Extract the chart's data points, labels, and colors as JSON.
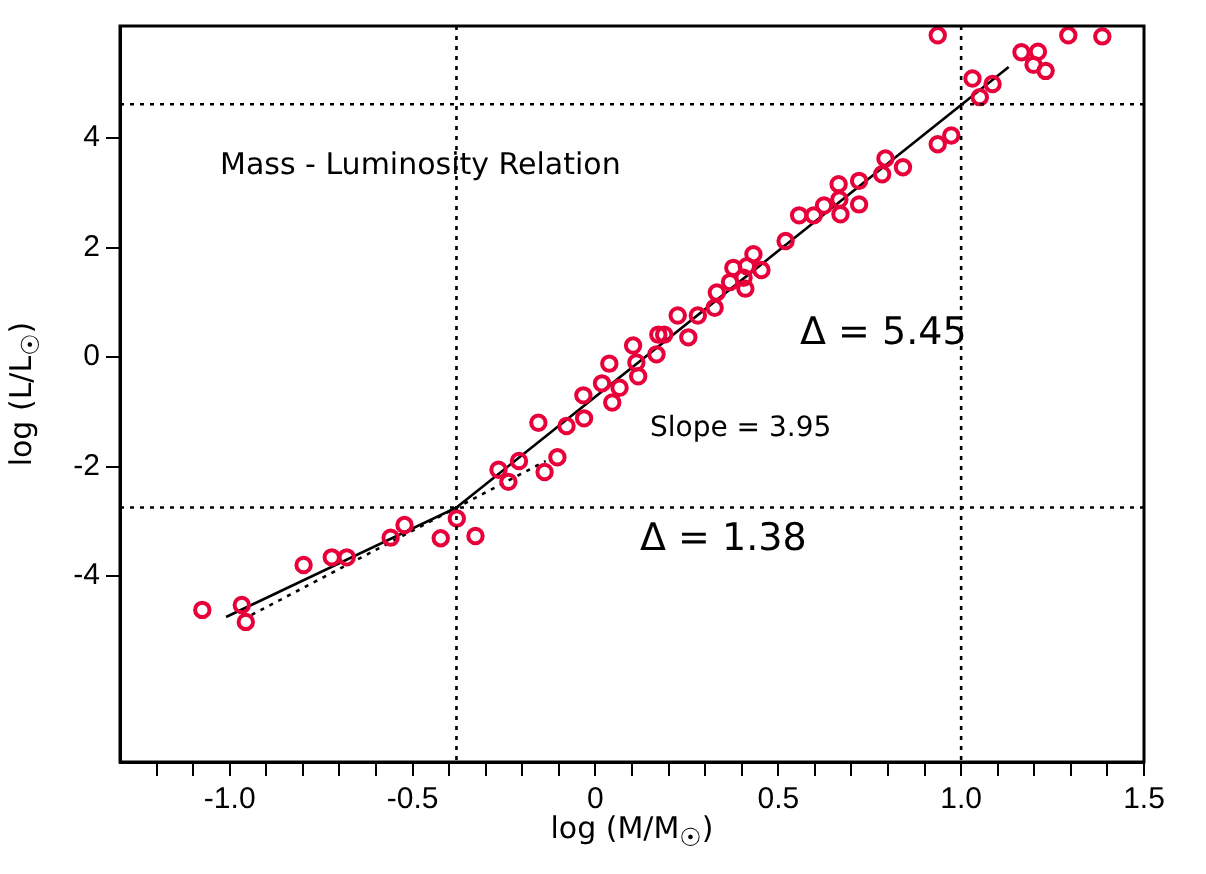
{
  "chart_data": {
    "type": "scatter",
    "xlabel": "log (M/M$_{☉}$)",
    "ylabel": "log (L/L$_{☉}$)",
    "xlim": [
      -1.3,
      1.5
    ],
    "ylim": [
      -7.4,
      6.05
    ],
    "xticks": [
      {
        "value": -1.2,
        "label": null
      },
      {
        "value": -1.1,
        "label": null
      },
      {
        "value": -1,
        "label": "-1.0"
      },
      {
        "value": -0.9,
        "label": null
      },
      {
        "value": -0.8,
        "label": null
      },
      {
        "value": -0.7,
        "label": null
      },
      {
        "value": -0.6,
        "label": null
      },
      {
        "value": -0.5,
        "label": "-0.5"
      },
      {
        "value": -0.4,
        "label": null
      },
      {
        "value": -0.3,
        "label": null
      },
      {
        "value": -0.2,
        "label": null
      },
      {
        "value": -0.1,
        "label": null
      },
      0,
      {
        "value": 0.1,
        "label": null
      },
      {
        "value": 0.2,
        "label": null
      },
      {
        "value": 0.3,
        "label": null
      },
      {
        "value": 0.4,
        "label": null
      },
      0.5,
      {
        "value": 0.6,
        "label": null
      },
      {
        "value": 0.7,
        "label": null
      },
      {
        "value": 0.8,
        "label": null
      },
      {
        "value": 0.9,
        "label": null
      },
      {
        "value": 1,
        "label": "1.0"
      },
      {
        "value": 1.1,
        "label": null
      },
      {
        "value": 1.2,
        "label": null
      },
      {
        "value": 1.3,
        "label": null
      },
      {
        "value": 1.4,
        "label": null
      },
      1.5
    ],
    "yticks": [
      -4,
      -2,
      0,
      2,
      4
    ],
    "grid": false,
    "legend": false,
    "series": [
      {
        "color": "#e8003a",
        "marker": "circle",
        "x": [
          -1.075,
          -0.967,
          -0.956,
          -0.798,
          -0.721,
          -0.68,
          -0.56,
          -0.522,
          -0.423,
          -0.379,
          -0.328,
          -0.265,
          -0.238,
          -0.209,
          -0.156,
          -0.139,
          -0.104,
          -0.079,
          -0.033,
          -0.031,
          0.018,
          0.046,
          0.066,
          0.038,
          0.117,
          0.112,
          0.103,
          0.172,
          0.167,
          0.188,
          0.225,
          0.254,
          0.28,
          0.326,
          0.332,
          0.368,
          0.377,
          0.405,
          0.41,
          0.414,
          0.432,
          0.454,
          0.52,
          0.557,
          0.597,
          0.625,
          0.665,
          0.667,
          0.67,
          0.721,
          0.721,
          0.784,
          0.793,
          0.841,
          0.936,
          0.973,
          0.936,
          1.031,
          1.051,
          1.086,
          1.165,
          1.21,
          1.198,
          1.231,
          1.293,
          1.386
        ],
        "values": [
          -4.62,
          -4.53,
          -4.84,
          -3.8,
          -3.66,
          -3.66,
          -3.3,
          -3.07,
          -3.31,
          -2.95,
          -3.27,
          -2.06,
          -2.28,
          -1.9,
          -1.2,
          -2.1,
          -1.83,
          -1.26,
          -0.7,
          -1.12,
          -0.48,
          -0.83,
          -0.56,
          -0.12,
          -0.35,
          -0.1,
          0.21,
          0.41,
          0.05,
          0.41,
          0.76,
          0.36,
          0.76,
          0.9,
          1.18,
          1.37,
          1.63,
          1.45,
          1.25,
          1.66,
          1.88,
          1.59,
          2.12,
          2.59,
          2.59,
          2.77,
          3.16,
          2.88,
          2.61,
          3.22,
          2.79,
          3.34,
          3.63,
          3.47,
          3.89,
          4.05,
          5.88,
          5.09,
          4.75,
          4.99,
          5.57,
          5.58,
          5.34,
          5.23,
          5.88,
          5.86
        ]
      },
      {
        "type": "line",
        "color": "#000000",
        "marker": "none",
        "line_style": "solid",
        "x": [
          -1.01,
          -0.38,
          1.13
        ],
        "values": [
          -4.75,
          -2.75,
          5.3
        ]
      },
      {
        "type": "line",
        "color": "#000000",
        "marker": "none",
        "line_style": "dotted",
        "x": [
          -0.94,
          -0.136
        ],
        "values": [
          -4.71,
          -1.9
        ]
      }
    ],
    "ref_lines": [
      {
        "axis": "y",
        "value": 4.62,
        "line_style": "dotted"
      },
      {
        "axis": "y",
        "value": -2.75,
        "line_style": "dotted"
      },
      {
        "axis": "x",
        "value": -0.38,
        "line_style": "dotted"
      },
      {
        "axis": "x",
        "value": 1,
        "line_style": "dotted"
      }
    ],
    "annotations": [
      "Mass - Luminosity Relation",
      "Δ = 5.45",
      "Slope = 3.95",
      "Δ = 1.38"
    ]
  }
}
